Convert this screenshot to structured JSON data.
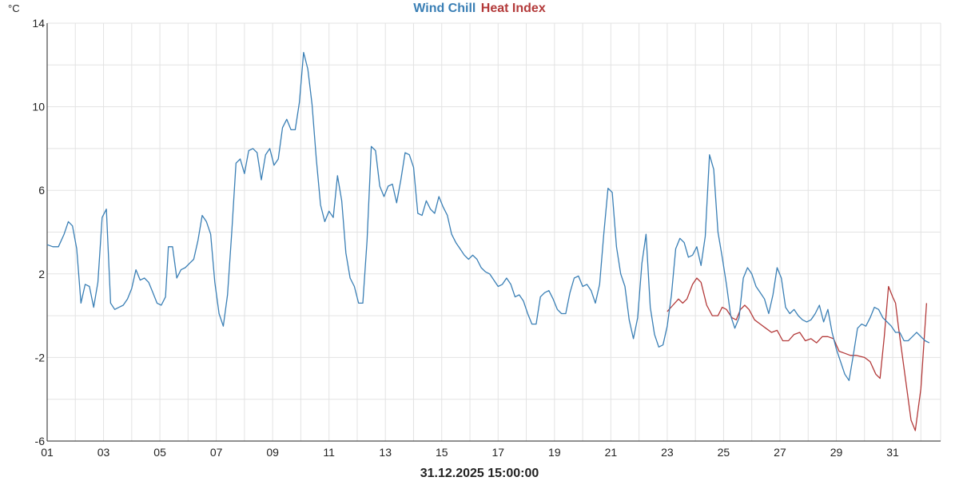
{
  "chart_data": {
    "type": "line",
    "title_parts": [
      {
        "text": "Wind Chill",
        "color": "#3a7fb5"
      },
      {
        "text": "Heat Index",
        "color": "#b33a3a"
      }
    ],
    "unit_label": "°C",
    "x_caption": "31.12.2025 15:00:00",
    "ylim": [
      -6,
      14
    ],
    "y_ticks": [
      {
        "value": 14,
        "label": "14"
      },
      {
        "value": 10,
        "label": "10"
      },
      {
        "value": 6,
        "label": "6"
      },
      {
        "value": 2,
        "label": "2"
      },
      {
        "value": -2,
        "label": "-2"
      },
      {
        "value": -6,
        "label": "-6"
      }
    ],
    "y_grid_step": 2,
    "xlim": [
      1,
      32.7
    ],
    "x_ticks": [
      {
        "value": 1,
        "label": "01"
      },
      {
        "value": 3,
        "label": "03"
      },
      {
        "value": 5,
        "label": "05"
      },
      {
        "value": 7,
        "label": "07"
      },
      {
        "value": 9,
        "label": "09"
      },
      {
        "value": 11,
        "label": "11"
      },
      {
        "value": 13,
        "label": "13"
      },
      {
        "value": 15,
        "label": "15"
      },
      {
        "value": 17,
        "label": "17"
      },
      {
        "value": 19,
        "label": "19"
      },
      {
        "value": 21,
        "label": "21"
      },
      {
        "value": 23,
        "label": "23"
      },
      {
        "value": 25,
        "label": "25"
      },
      {
        "value": 27,
        "label": "27"
      },
      {
        "value": 29,
        "label": "29"
      },
      {
        "value": 31,
        "label": "31"
      }
    ],
    "grid": true,
    "series": [
      {
        "name": "Heat Index",
        "color": "#b33a3a",
        "points": [
          [
            23.0,
            0.2
          ],
          [
            23.2,
            0.5
          ],
          [
            23.4,
            0.8
          ],
          [
            23.55,
            0.6
          ],
          [
            23.7,
            0.8
          ],
          [
            23.9,
            1.5
          ],
          [
            24.05,
            1.8
          ],
          [
            24.2,
            1.6
          ],
          [
            24.4,
            0.5
          ],
          [
            24.6,
            0.0
          ],
          [
            24.8,
            0.0
          ],
          [
            24.95,
            0.4
          ],
          [
            25.1,
            0.3
          ],
          [
            25.3,
            -0.1
          ],
          [
            25.45,
            -0.2
          ],
          [
            25.6,
            0.3
          ],
          [
            25.75,
            0.5
          ],
          [
            25.9,
            0.3
          ],
          [
            26.1,
            -0.2
          ],
          [
            26.3,
            -0.4
          ],
          [
            26.5,
            -0.6
          ],
          [
            26.7,
            -0.8
          ],
          [
            26.9,
            -0.7
          ],
          [
            27.1,
            -1.2
          ],
          [
            27.3,
            -1.2
          ],
          [
            27.5,
            -0.9
          ],
          [
            27.7,
            -0.8
          ],
          [
            27.9,
            -1.2
          ],
          [
            28.1,
            -1.1
          ],
          [
            28.3,
            -1.3
          ],
          [
            28.5,
            -1.0
          ],
          [
            28.7,
            -1.0
          ],
          [
            28.9,
            -1.1
          ],
          [
            29.1,
            -1.7
          ],
          [
            29.3,
            -1.8
          ],
          [
            29.5,
            -1.9
          ],
          [
            29.7,
            -1.9
          ],
          [
            30.0,
            -2.0
          ],
          [
            30.2,
            -2.2
          ],
          [
            30.4,
            -2.8
          ],
          [
            30.55,
            -3.0
          ],
          [
            30.7,
            -1.0
          ],
          [
            30.85,
            1.4
          ],
          [
            31.0,
            0.9
          ],
          [
            31.1,
            0.6
          ],
          [
            31.2,
            -0.5
          ],
          [
            31.35,
            -2.0
          ],
          [
            31.5,
            -3.5
          ],
          [
            31.65,
            -5.0
          ],
          [
            31.8,
            -5.5
          ],
          [
            32.0,
            -3.5
          ],
          [
            32.2,
            0.6
          ]
        ]
      },
      {
        "name": "Wind Chill",
        "color": "#3a7fb5",
        "points": [
          [
            1.0,
            3.4
          ],
          [
            1.2,
            3.3
          ],
          [
            1.4,
            3.3
          ],
          [
            1.6,
            3.9
          ],
          [
            1.75,
            4.5
          ],
          [
            1.9,
            4.3
          ],
          [
            2.05,
            3.2
          ],
          [
            2.2,
            0.6
          ],
          [
            2.35,
            1.5
          ],
          [
            2.5,
            1.4
          ],
          [
            2.65,
            0.4
          ],
          [
            2.8,
            1.6
          ],
          [
            2.95,
            4.7
          ],
          [
            3.1,
            5.1
          ],
          [
            3.25,
            0.6
          ],
          [
            3.4,
            0.3
          ],
          [
            3.55,
            0.4
          ],
          [
            3.7,
            0.5
          ],
          [
            3.85,
            0.8
          ],
          [
            4.0,
            1.3
          ],
          [
            4.15,
            2.2
          ],
          [
            4.3,
            1.7
          ],
          [
            4.45,
            1.8
          ],
          [
            4.6,
            1.6
          ],
          [
            4.75,
            1.1
          ],
          [
            4.9,
            0.6
          ],
          [
            5.05,
            0.5
          ],
          [
            5.2,
            0.9
          ],
          [
            5.3,
            3.3
          ],
          [
            5.45,
            3.3
          ],
          [
            5.6,
            1.8
          ],
          [
            5.75,
            2.2
          ],
          [
            5.9,
            2.3
          ],
          [
            6.05,
            2.5
          ],
          [
            6.2,
            2.7
          ],
          [
            6.35,
            3.6
          ],
          [
            6.5,
            4.8
          ],
          [
            6.65,
            4.5
          ],
          [
            6.8,
            3.9
          ],
          [
            6.95,
            1.6
          ],
          [
            7.1,
            0.1
          ],
          [
            7.25,
            -0.5
          ],
          [
            7.4,
            1.0
          ],
          [
            7.55,
            4.0
          ],
          [
            7.7,
            7.3
          ],
          [
            7.85,
            7.5
          ],
          [
            8.0,
            6.8
          ],
          [
            8.15,
            7.9
          ],
          [
            8.3,
            8.0
          ],
          [
            8.45,
            7.8
          ],
          [
            8.6,
            6.5
          ],
          [
            8.75,
            7.7
          ],
          [
            8.9,
            8.0
          ],
          [
            9.05,
            7.2
          ],
          [
            9.2,
            7.5
          ],
          [
            9.35,
            9.0
          ],
          [
            9.5,
            9.4
          ],
          [
            9.65,
            8.9
          ],
          [
            9.8,
            8.9
          ],
          [
            9.95,
            10.2
          ],
          [
            10.1,
            12.6
          ],
          [
            10.25,
            11.8
          ],
          [
            10.4,
            10.1
          ],
          [
            10.55,
            7.5
          ],
          [
            10.7,
            5.3
          ],
          [
            10.85,
            4.5
          ],
          [
            11.0,
            5.0
          ],
          [
            11.15,
            4.7
          ],
          [
            11.3,
            6.7
          ],
          [
            11.45,
            5.5
          ],
          [
            11.6,
            3.0
          ],
          [
            11.75,
            1.8
          ],
          [
            11.9,
            1.4
          ],
          [
            12.05,
            0.6
          ],
          [
            12.2,
            0.6
          ],
          [
            12.35,
            3.6
          ],
          [
            12.5,
            8.1
          ],
          [
            12.65,
            7.9
          ],
          [
            12.8,
            6.2
          ],
          [
            12.95,
            5.7
          ],
          [
            13.1,
            6.2
          ],
          [
            13.25,
            6.3
          ],
          [
            13.4,
            5.4
          ],
          [
            13.55,
            6.5
          ],
          [
            13.7,
            7.8
          ],
          [
            13.85,
            7.7
          ],
          [
            14.0,
            7.1
          ],
          [
            14.15,
            4.9
          ],
          [
            14.3,
            4.8
          ],
          [
            14.45,
            5.5
          ],
          [
            14.6,
            5.1
          ],
          [
            14.75,
            4.9
          ],
          [
            14.9,
            5.7
          ],
          [
            15.05,
            5.2
          ],
          [
            15.2,
            4.8
          ],
          [
            15.35,
            3.9
          ],
          [
            15.5,
            3.5
          ],
          [
            15.65,
            3.2
          ],
          [
            15.8,
            2.9
          ],
          [
            15.95,
            2.7
          ],
          [
            16.1,
            2.9
          ],
          [
            16.25,
            2.7
          ],
          [
            16.4,
            2.3
          ],
          [
            16.55,
            2.1
          ],
          [
            16.7,
            2.0
          ],
          [
            16.85,
            1.7
          ],
          [
            17.0,
            1.4
          ],
          [
            17.15,
            1.5
          ],
          [
            17.3,
            1.8
          ],
          [
            17.45,
            1.5
          ],
          [
            17.6,
            0.9
          ],
          [
            17.75,
            1.0
          ],
          [
            17.9,
            0.7
          ],
          [
            18.05,
            0.1
          ],
          [
            18.2,
            -0.4
          ],
          [
            18.35,
            -0.4
          ],
          [
            18.5,
            0.9
          ],
          [
            18.65,
            1.1
          ],
          [
            18.8,
            1.2
          ],
          [
            18.95,
            0.8
          ],
          [
            19.1,
            0.3
          ],
          [
            19.25,
            0.1
          ],
          [
            19.4,
            0.1
          ],
          [
            19.55,
            1.1
          ],
          [
            19.7,
            1.8
          ],
          [
            19.85,
            1.9
          ],
          [
            20.0,
            1.4
          ],
          [
            20.15,
            1.5
          ],
          [
            20.3,
            1.2
          ],
          [
            20.45,
            0.6
          ],
          [
            20.6,
            1.5
          ],
          [
            20.75,
            3.9
          ],
          [
            20.9,
            6.1
          ],
          [
            21.05,
            5.9
          ],
          [
            21.2,
            3.3
          ],
          [
            21.35,
            2.0
          ],
          [
            21.5,
            1.4
          ],
          [
            21.65,
            -0.2
          ],
          [
            21.8,
            -1.1
          ],
          [
            21.95,
            -0.1
          ],
          [
            22.1,
            2.5
          ],
          [
            22.25,
            3.9
          ],
          [
            22.4,
            0.4
          ],
          [
            22.55,
            -0.9
          ],
          [
            22.7,
            -1.5
          ],
          [
            22.85,
            -1.4
          ],
          [
            23.0,
            -0.5
          ],
          [
            23.15,
            1.0
          ],
          [
            23.3,
            3.2
          ],
          [
            23.45,
            3.7
          ],
          [
            23.6,
            3.5
          ],
          [
            23.75,
            2.8
          ],
          [
            23.9,
            2.9
          ],
          [
            24.05,
            3.3
          ],
          [
            24.2,
            2.4
          ],
          [
            24.35,
            3.8
          ],
          [
            24.5,
            7.7
          ],
          [
            24.65,
            7.0
          ],
          [
            24.8,
            4.0
          ],
          [
            24.95,
            2.8
          ],
          [
            25.1,
            1.5
          ],
          [
            25.25,
            0.0
          ],
          [
            25.4,
            -0.6
          ],
          [
            25.55,
            -0.1
          ],
          [
            25.7,
            1.8
          ],
          [
            25.85,
            2.3
          ],
          [
            26.0,
            2.0
          ],
          [
            26.15,
            1.4
          ],
          [
            26.3,
            1.1
          ],
          [
            26.45,
            0.8
          ],
          [
            26.6,
            0.1
          ],
          [
            26.75,
            1.0
          ],
          [
            26.9,
            2.3
          ],
          [
            27.05,
            1.8
          ],
          [
            27.2,
            0.4
          ],
          [
            27.35,
            0.1
          ],
          [
            27.5,
            0.3
          ],
          [
            27.65,
            0.0
          ],
          [
            27.8,
            -0.2
          ],
          [
            27.95,
            -0.3
          ],
          [
            28.1,
            -0.2
          ],
          [
            28.25,
            0.1
          ],
          [
            28.4,
            0.5
          ],
          [
            28.55,
            -0.3
          ],
          [
            28.7,
            0.3
          ],
          [
            28.85,
            -0.8
          ],
          [
            29.0,
            -1.6
          ],
          [
            29.15,
            -2.2
          ],
          [
            29.3,
            -2.8
          ],
          [
            29.45,
            -3.1
          ],
          [
            29.6,
            -1.9
          ],
          [
            29.75,
            -0.6
          ],
          [
            29.9,
            -0.4
          ],
          [
            30.05,
            -0.5
          ],
          [
            30.2,
            -0.1
          ],
          [
            30.35,
            0.4
          ],
          [
            30.5,
            0.3
          ],
          [
            30.65,
            -0.1
          ],
          [
            30.8,
            -0.3
          ],
          [
            30.95,
            -0.5
          ],
          [
            31.1,
            -0.8
          ],
          [
            31.25,
            -0.8
          ],
          [
            31.4,
            -1.2
          ],
          [
            31.55,
            -1.2
          ],
          [
            31.7,
            -1.0
          ],
          [
            31.85,
            -0.8
          ],
          [
            32.0,
            -1.0
          ],
          [
            32.15,
            -1.2
          ],
          [
            32.3,
            -1.3
          ]
        ]
      }
    ]
  }
}
